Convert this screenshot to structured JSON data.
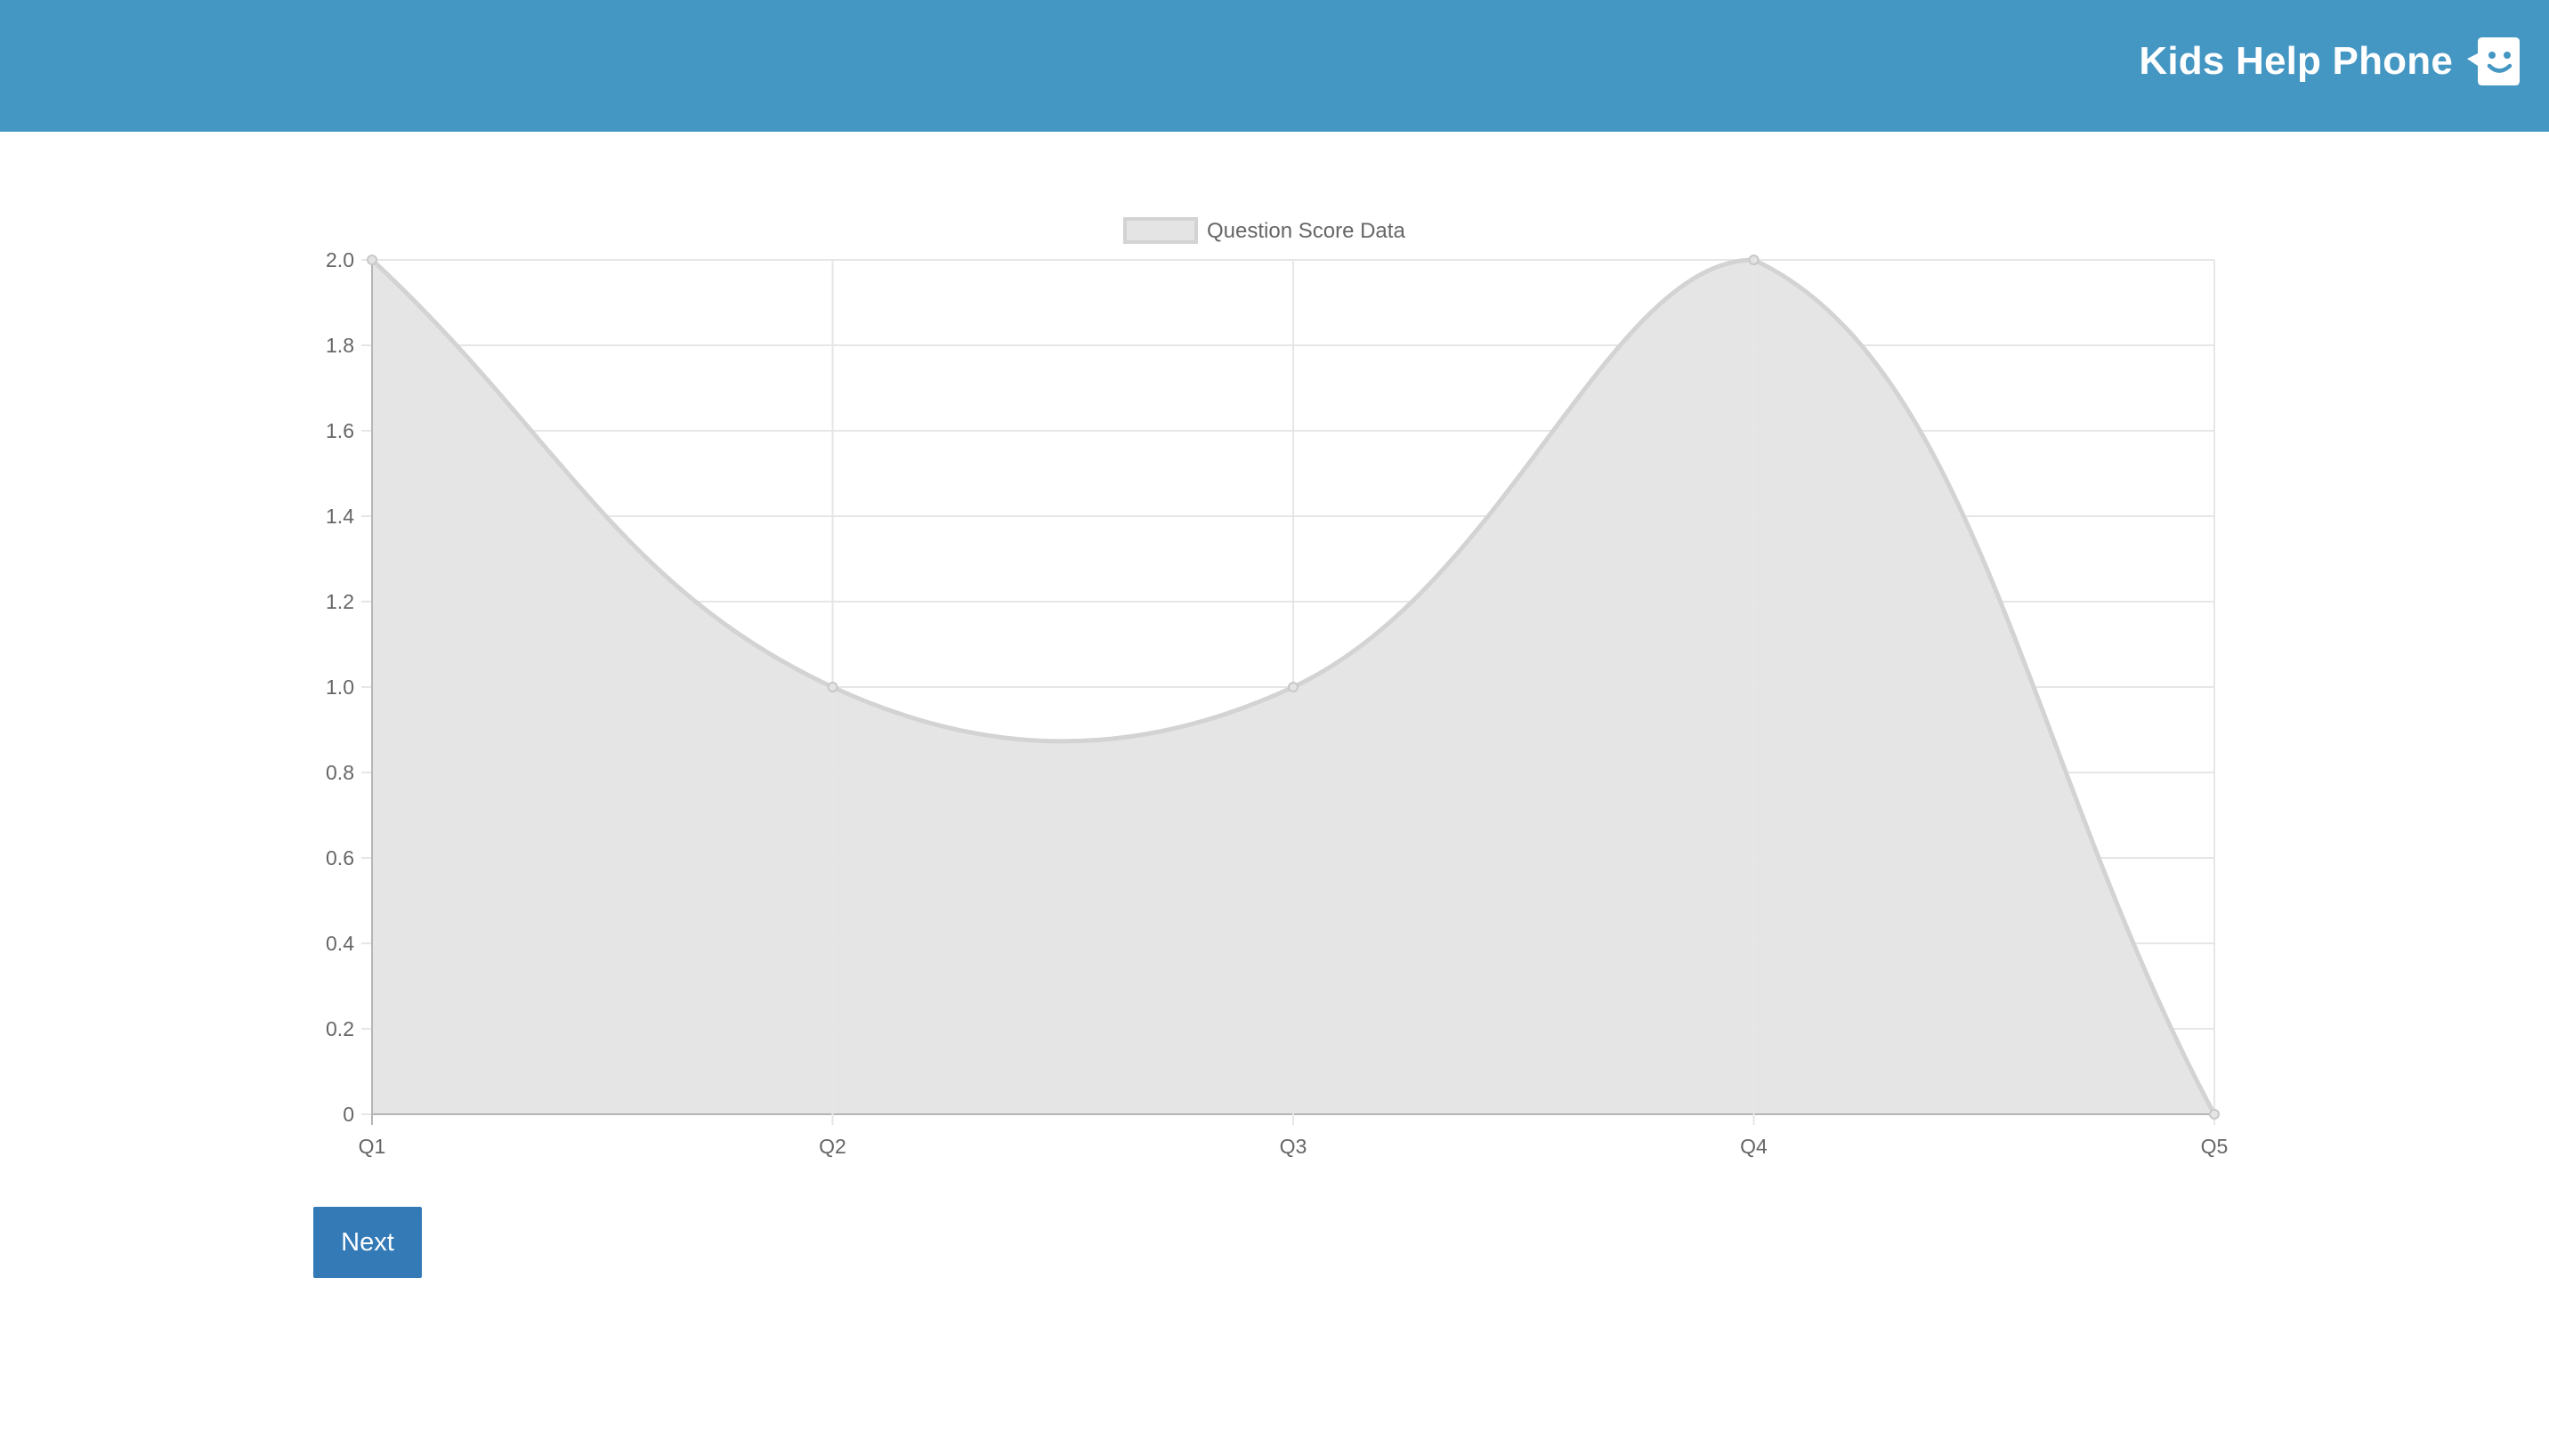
{
  "header": {
    "brand_name": "Kids Help Phone",
    "logo_icon": "smiley-chat-bubble-icon",
    "background_color": "#4496c3"
  },
  "chart_data": {
    "type": "area",
    "smooth": true,
    "categories": [
      "Q1",
      "Q2",
      "Q3",
      "Q4",
      "Q5"
    ],
    "series": [
      {
        "name": "Question Score Data",
        "values": [
          2,
          1,
          1,
          2,
          0
        ]
      }
    ],
    "ylim": [
      0,
      2
    ],
    "yticks": [
      "0",
      "0.2",
      "0.4",
      "0.6",
      "0.8",
      "1.0",
      "1.2",
      "1.4",
      "1.6",
      "1.8",
      "2.0"
    ],
    "grid": true,
    "legend_position": "top-center",
    "fill_color": "#e4e4e4",
    "line_color": "#d3d3d3"
  },
  "actions": {
    "next_label": "Next",
    "next_color": "#337ab7"
  }
}
